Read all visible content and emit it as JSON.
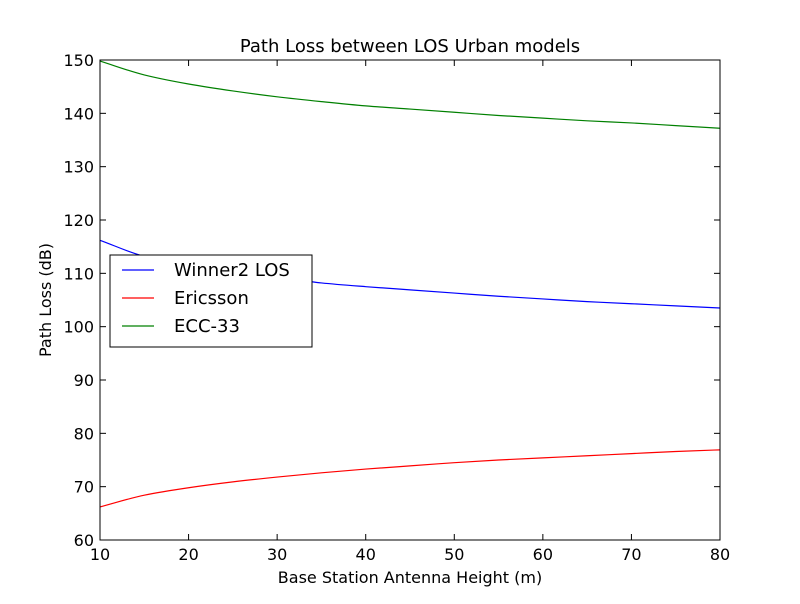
{
  "chart_data": {
    "type": "line",
    "title": "Path Loss between LOS Urban models",
    "xlabel": "Base Station Antenna Height (m)",
    "ylabel": "Path Loss (dB)",
    "xlim": [
      10,
      80
    ],
    "ylim": [
      60,
      150
    ],
    "xticks": [
      10,
      20,
      30,
      40,
      50,
      60,
      70,
      80
    ],
    "yticks": [
      60,
      70,
      80,
      90,
      100,
      110,
      120,
      130,
      140,
      150
    ],
    "grid": false,
    "legend_position": "center-left",
    "x": [
      10,
      15,
      20,
      25,
      30,
      35,
      40,
      45,
      50,
      55,
      60,
      65,
      70,
      75,
      80
    ],
    "series": [
      {
        "name": "Winner2 LOS",
        "color": "#0000ff",
        "values": [
          116.2,
          113.2,
          111.7,
          110.1,
          109.3,
          108.2,
          107.5,
          106.9,
          106.3,
          105.7,
          105.2,
          104.7,
          104.3,
          103.9,
          103.5
        ]
      },
      {
        "name": "Ericsson",
        "color": "#ff0000",
        "values": [
          66.2,
          68.4,
          69.8,
          70.9,
          71.8,
          72.6,
          73.3,
          73.9,
          74.5,
          75.0,
          75.4,
          75.8,
          76.2,
          76.6,
          76.9
        ]
      },
      {
        "name": "ECC-33",
        "color": "#008000",
        "values": [
          149.8,
          147.2,
          145.5,
          144.2,
          143.1,
          142.2,
          141.4,
          140.8,
          140.2,
          139.6,
          139.1,
          138.6,
          138.2,
          137.7,
          137.2
        ]
      }
    ]
  }
}
